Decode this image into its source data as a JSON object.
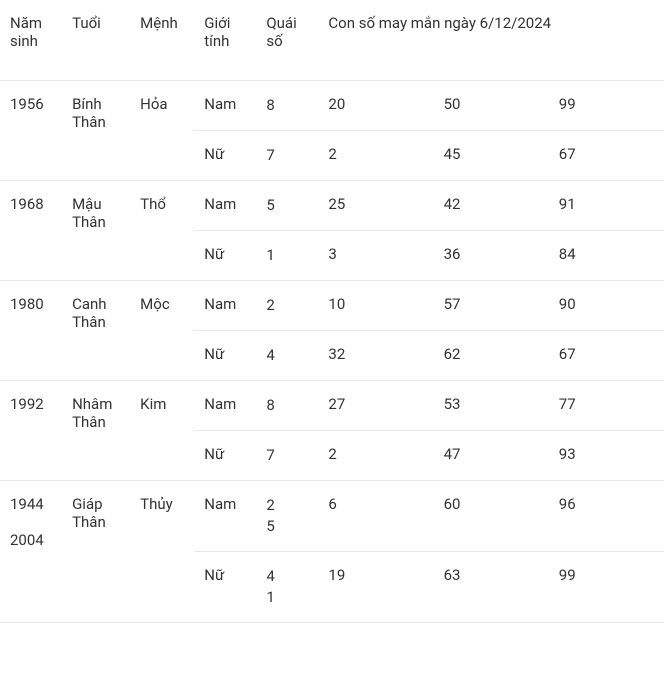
{
  "headers": {
    "year": "Năm sinh",
    "age": "Tuổi",
    "element": "Mệnh",
    "gender": "Giới tính",
    "quai": "Quái số",
    "lucky": "Con số may mắn ngày 6/12/2024"
  },
  "genders": {
    "male": "Nam",
    "female": "Nữ"
  },
  "groups": [
    {
      "years": [
        "1956"
      ],
      "age": "Bính Thân",
      "element": "Hỏa",
      "rows": [
        {
          "gender": "Nam",
          "quai": [
            "8"
          ],
          "nums": [
            "20",
            "50",
            "99"
          ]
        },
        {
          "gender": "Nữ",
          "quai": [
            "7"
          ],
          "nums": [
            "2",
            "45",
            "67"
          ]
        }
      ]
    },
    {
      "years": [
        "1968"
      ],
      "age": "Mậu Thân",
      "element": "Thổ",
      "rows": [
        {
          "gender": "Nam",
          "quai": [
            "5"
          ],
          "nums": [
            "25",
            "42",
            "91"
          ]
        },
        {
          "gender": "Nữ",
          "quai": [
            "1"
          ],
          "nums": [
            "3",
            "36",
            "84"
          ]
        }
      ]
    },
    {
      "years": [
        "1980"
      ],
      "age": "Canh Thân",
      "element": "Mộc",
      "rows": [
        {
          "gender": "Nam",
          "quai": [
            "2"
          ],
          "nums": [
            "10",
            "57",
            "90"
          ]
        },
        {
          "gender": "Nữ",
          "quai": [
            "4"
          ],
          "nums": [
            "32",
            "62",
            "67"
          ]
        }
      ]
    },
    {
      "years": [
        "1992"
      ],
      "age": "Nhâm Thân",
      "element": "Kim",
      "rows": [
        {
          "gender": "Nam",
          "quai": [
            "8"
          ],
          "nums": [
            "27",
            "53",
            "77"
          ]
        },
        {
          "gender": "Nữ",
          "quai": [
            "7"
          ],
          "nums": [
            "2",
            "47",
            "93"
          ]
        }
      ]
    },
    {
      "years": [
        "1944",
        "2004"
      ],
      "age": "Giáp Thân",
      "element": "Thủy",
      "rows": [
        {
          "gender": "Nam",
          "quai": [
            "2",
            "5"
          ],
          "nums": [
            "6",
            "60",
            "96"
          ]
        },
        {
          "gender": "Nữ",
          "quai": [
            "4",
            "1"
          ],
          "nums": [
            "19",
            "63",
            "99"
          ]
        }
      ]
    }
  ],
  "style": {
    "border_color": "#e8e8e8",
    "text_color": "#333333",
    "background_color": "#ffffff",
    "font_size": 15
  }
}
